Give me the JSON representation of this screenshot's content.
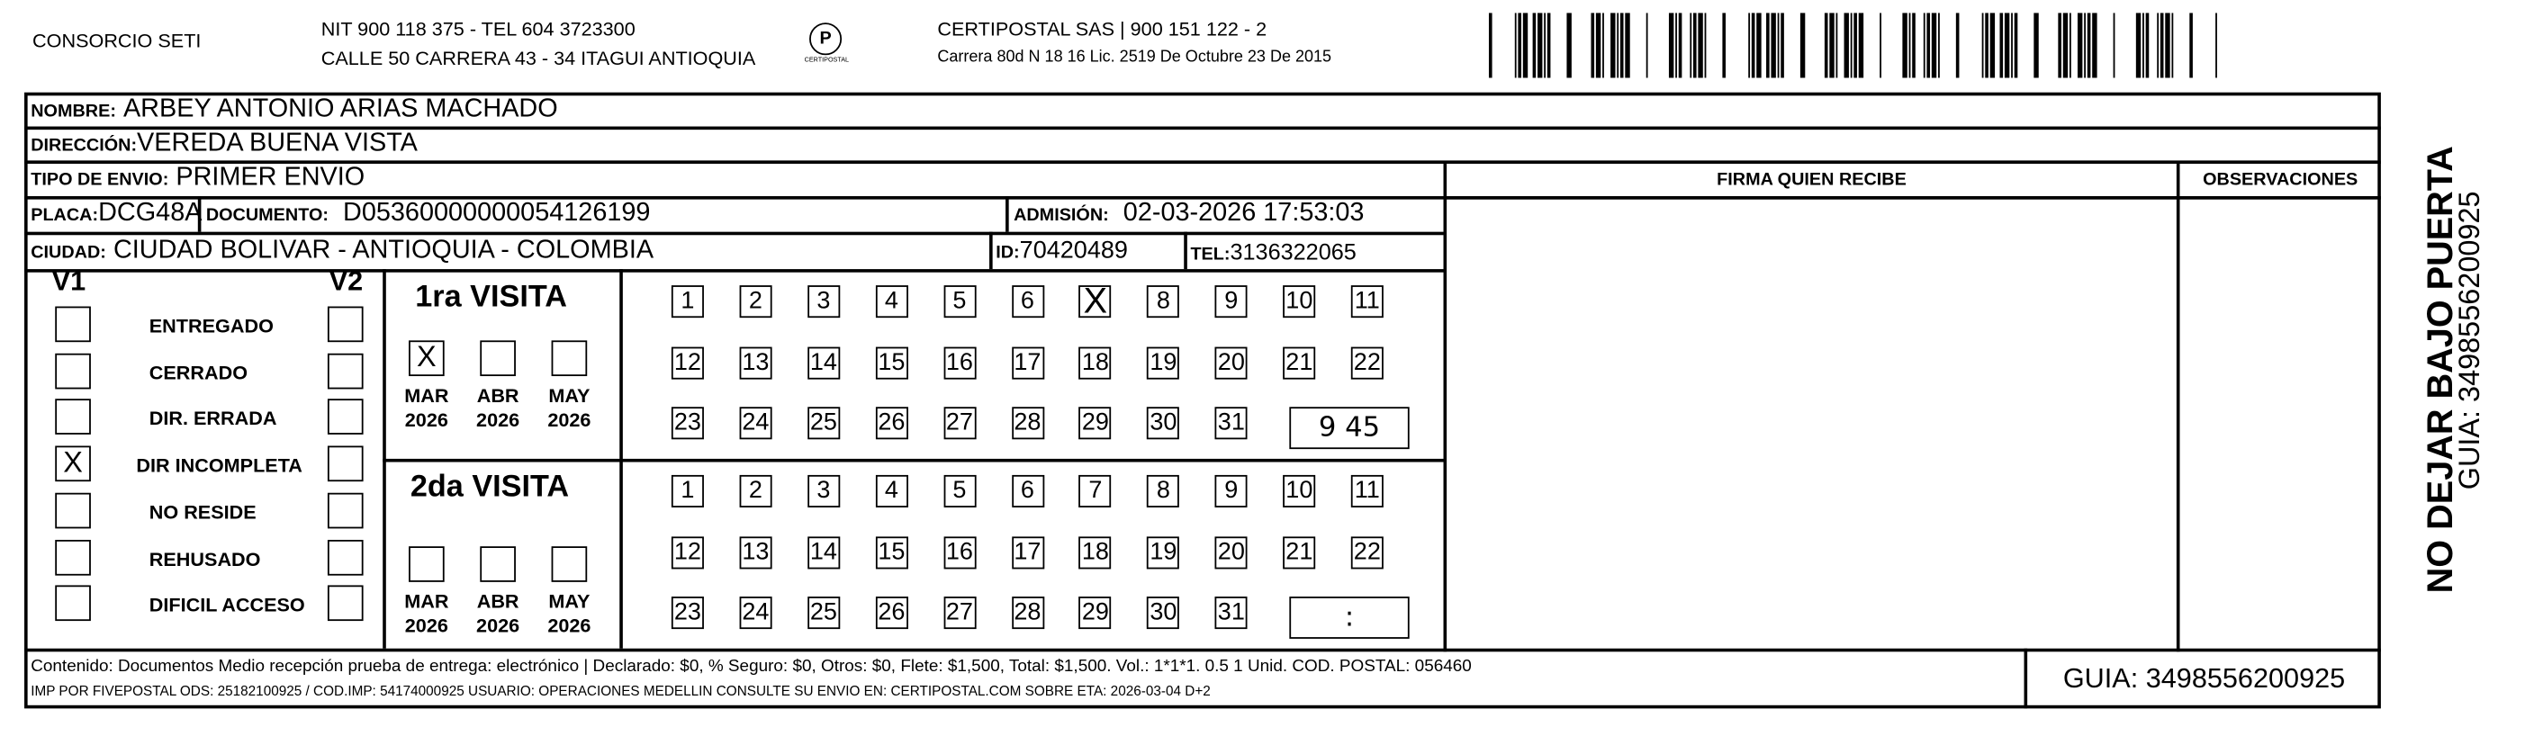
{
  "header": {
    "company": "CONSORCIO SETI",
    "nit_line": "NIT 900 118 375 - TEL 604 3723300",
    "address_line": "CALLE 50 CARRERA 43 - 34 ITAGUI ANTIOQUIA",
    "logo_text": "CERTIPOSTAL",
    "certipostal_line": "CERTIPOSTAL SAS | 900 151 122 - 2",
    "license_line": "Carrera 80d N 18 16  Lic. 2519 De Octubre 23 De 2015"
  },
  "recipient": {
    "nombre_label": "NOMBRE:",
    "nombre": "ARBEY ANTONIO ARIAS MACHADO",
    "direccion_label": "DIRECCIÓN:",
    "direccion": "VEREDA BUENA VISTA",
    "tipo_label": "TIPO DE ENVIO:",
    "tipo": "PRIMER ENVIO",
    "placa_label": "PLACA:",
    "placa": "DCG48A",
    "documento_label": "DOCUMENTO:",
    "documento": "D05360000000054126199",
    "admision_label": "ADMISIÓN:",
    "admision": "02-03-2026 17:53:03",
    "ciudad_label": "CIUDAD:",
    "ciudad": "CIUDAD BOLIVAR - ANTIOQUIA - COLOMBIA",
    "id_label": "ID:",
    "id": "70420489",
    "tel_label": "TEL:",
    "tel": "3136322065"
  },
  "columns": {
    "firma": "FIRMA QUIEN RECIBE",
    "observaciones": "OBSERVACIONES"
  },
  "status": {
    "v1_label": "V1",
    "v2_label": "V2",
    "items": [
      {
        "label": "ENTREGADO",
        "v1": "",
        "v2": ""
      },
      {
        "label": "CERRADO",
        "v1": "",
        "v2": ""
      },
      {
        "label": "DIR. ERRADA",
        "v1": "",
        "v2": ""
      },
      {
        "label": "DIR INCOMPLETA",
        "v1": "X",
        "v2": ""
      },
      {
        "label": "NO RESIDE",
        "v1": "",
        "v2": ""
      },
      {
        "label": "REHUSADO",
        "v1": "",
        "v2": ""
      },
      {
        "label": "DIFICIL ACCESO",
        "v1": "",
        "v2": ""
      }
    ]
  },
  "visits": [
    {
      "title": "1ra VISITA",
      "months": [
        {
          "m": "MAR",
          "y": "2026",
          "mark": "X"
        },
        {
          "m": "ABR",
          "y": "2026",
          "mark": ""
        },
        {
          "m": "MAY",
          "y": "2026",
          "mark": ""
        }
      ],
      "marked_day": 7,
      "time": "9 45"
    },
    {
      "title": "2da VISITA",
      "months": [
        {
          "m": "MAR",
          "y": "2026",
          "mark": ""
        },
        {
          "m": "ABR",
          "y": "2026",
          "mark": ""
        },
        {
          "m": "MAY",
          "y": "2026",
          "mark": ""
        }
      ],
      "marked_day": null,
      "time": ":"
    }
  ],
  "footer": {
    "contenido": "Contenido: Documentos Medio recepción prueba de entrega: electrónico | Declarado: $0, % Seguro: $0, Otros: $0, Flete: $1,500, Total: $1,500. Vol.: 1*1*1. 0.5  1 Unid. COD. POSTAL: 056460",
    "imp": "IMP POR FIVEPOSTAL ODS: 25182100925 / COD.IMP: 54174000925 USUARIO: OPERACIONES MEDELLIN CONSULTE SU ENVIO EN: CERTIPOSTAL.COM SOBRE ETA: 2026-03-04 D+2",
    "guia": "GUIA: 3498556200925"
  },
  "side": {
    "warning": "NO DEJAR BAJO PUERTA",
    "guia": "GUIA: 3498556200925"
  }
}
